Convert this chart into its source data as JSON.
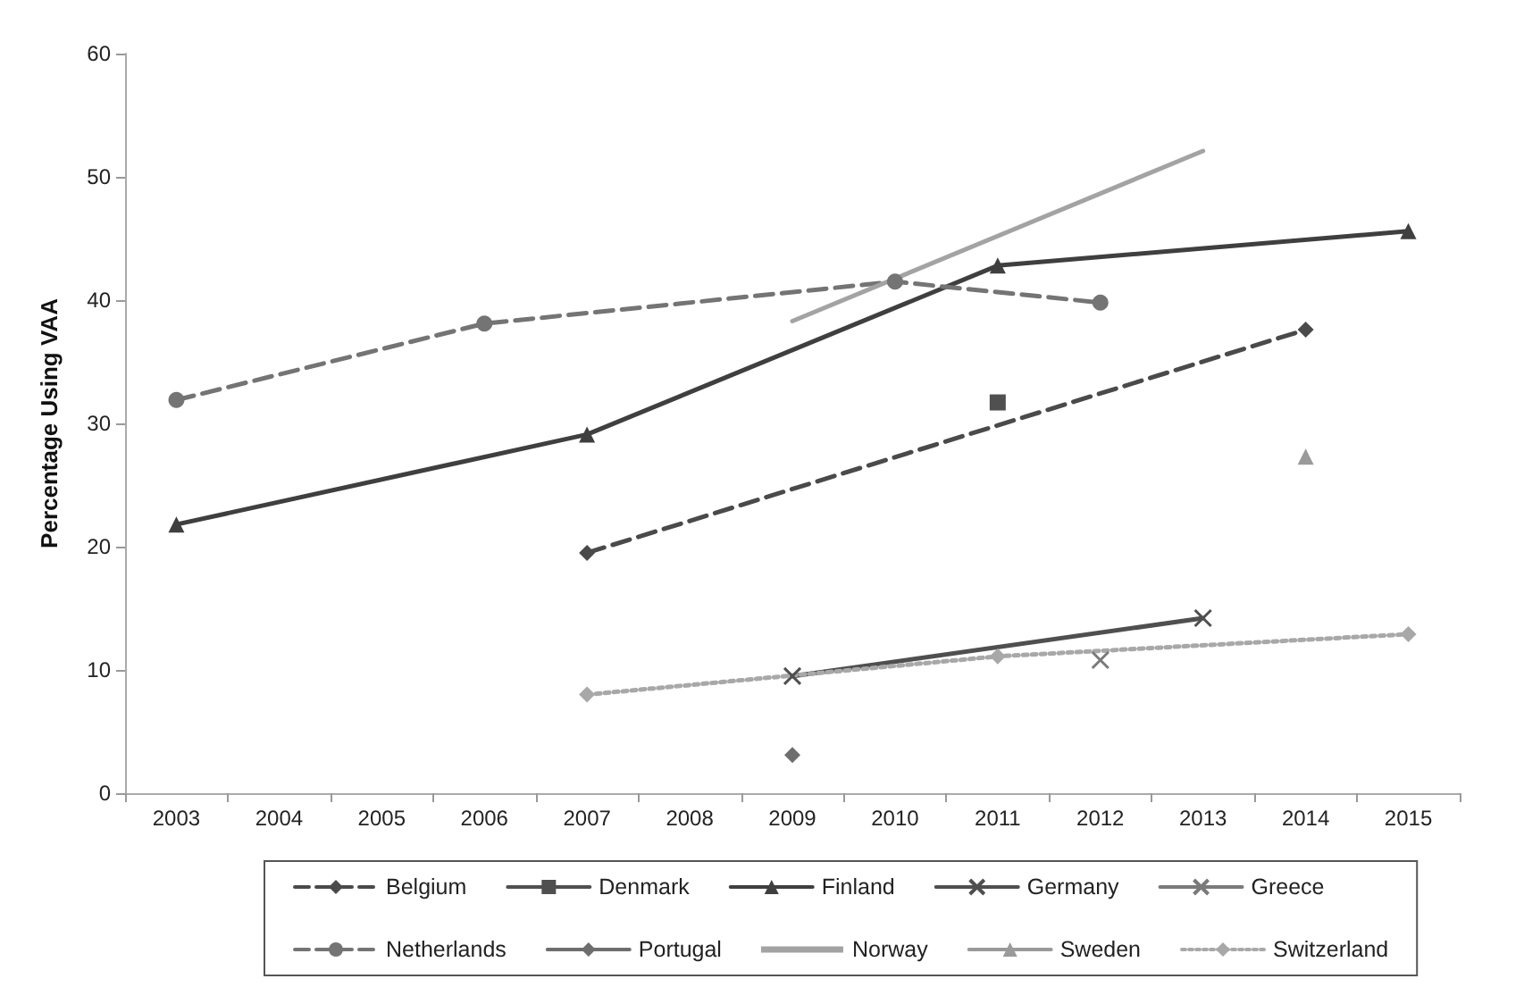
{
  "chart_data": {
    "type": "line",
    "ylabel": "Percentage Using VAA",
    "categories": [
      "2003",
      "2004",
      "2005",
      "2006",
      "2007",
      "2008",
      "2009",
      "2010",
      "2011",
      "2012",
      "2013",
      "2014",
      "2015"
    ],
    "ylim": [
      0,
      60
    ],
    "yticks": [
      0,
      10,
      20,
      30,
      40,
      50,
      60
    ],
    "grid": false,
    "legend": "bottom",
    "series": [
      {
        "name": "Belgium",
        "color": "#4a4a4a",
        "marker": "diamond",
        "line_style": "dashed",
        "values": [
          null,
          null,
          null,
          null,
          19.5,
          null,
          null,
          null,
          null,
          null,
          null,
          37.6,
          null
        ]
      },
      {
        "name": "Denmark",
        "color": "#505050",
        "marker": "square",
        "line_style": "solid",
        "values": [
          null,
          null,
          null,
          null,
          null,
          null,
          null,
          null,
          31.7,
          null,
          null,
          null,
          null
        ]
      },
      {
        "name": "Finland",
        "color": "#3f3f3f",
        "marker": "triangle",
        "line_style": "solid",
        "values": [
          21.8,
          null,
          null,
          null,
          29.1,
          null,
          null,
          null,
          42.8,
          null,
          null,
          null,
          45.6
        ]
      },
      {
        "name": "Germany",
        "color": "#4f4f4f",
        "marker": "cross",
        "line_style": "solid",
        "values": [
          null,
          null,
          null,
          null,
          null,
          null,
          9.5,
          null,
          null,
          null,
          14.2,
          null,
          null
        ]
      },
      {
        "name": "Greece",
        "color": "#7a7a7a",
        "marker": "cross",
        "line_style": "solid",
        "values": [
          null,
          null,
          null,
          null,
          null,
          null,
          null,
          null,
          null,
          10.8,
          null,
          null,
          null
        ]
      },
      {
        "name": "Netherlands",
        "color": "#747474",
        "marker": "circle",
        "line_style": "dashed",
        "values": [
          31.9,
          null,
          null,
          38.1,
          null,
          null,
          null,
          41.5,
          null,
          39.8,
          null,
          null,
          null
        ]
      },
      {
        "name": "Portugal",
        "color": "#6e6e6e",
        "marker": "diamond",
        "line_style": "solid",
        "values": [
          null,
          null,
          null,
          null,
          null,
          null,
          3.1,
          null,
          null,
          null,
          null,
          null,
          null
        ]
      },
      {
        "name": "Norway",
        "color": "#a3a3a3",
        "marker": "none",
        "line_style": "solid",
        "values": [
          null,
          null,
          null,
          null,
          null,
          null,
          38.3,
          null,
          null,
          null,
          52.1,
          null,
          null
        ]
      },
      {
        "name": "Sweden",
        "color": "#9a9a9a",
        "marker": "triangle",
        "line_style": "solid",
        "values": [
          null,
          null,
          null,
          null,
          null,
          null,
          null,
          null,
          null,
          null,
          null,
          27.3,
          null
        ]
      },
      {
        "name": "Switzerland",
        "color": "#a8a8a8",
        "marker": "diamond",
        "line_style": "dotted",
        "values": [
          null,
          null,
          null,
          null,
          8.0,
          null,
          null,
          null,
          11.1,
          null,
          null,
          null,
          12.9
        ]
      }
    ]
  }
}
